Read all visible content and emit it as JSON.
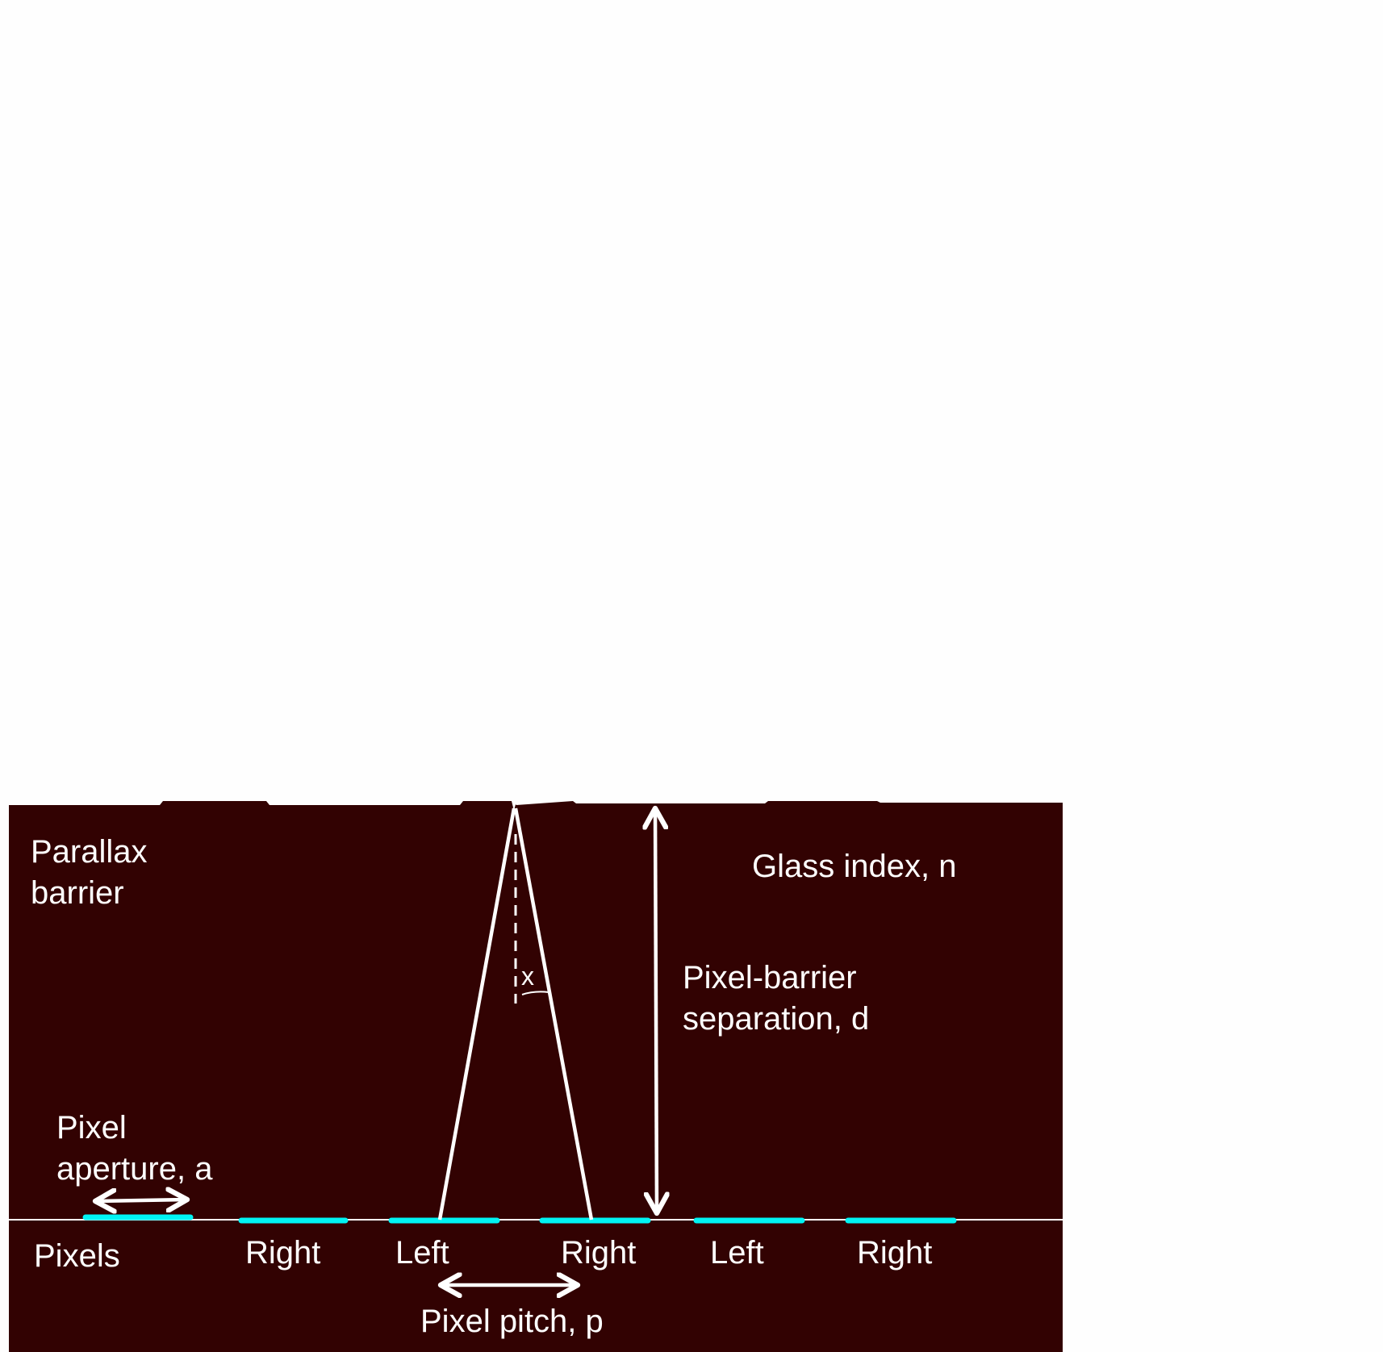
{
  "colors": {
    "background": "#fefefe",
    "panel": "#320202",
    "line": "#ffffff",
    "pixel": "#00f4f4"
  },
  "labels": {
    "barrier_line1": "Parallax",
    "barrier_line2": "barrier",
    "glass_index": "Glass index, n",
    "separation_line1": "Pixel-barrier",
    "separation_line2": "separation, d",
    "aperture_line1": "Pixel",
    "aperture_line2": "aperture, a",
    "pixels": "Pixels",
    "angle": "x",
    "pitch": "Pixel pitch, p"
  },
  "pixel_labels": [
    "Right",
    "Left",
    "Right",
    "Left",
    "Right"
  ]
}
